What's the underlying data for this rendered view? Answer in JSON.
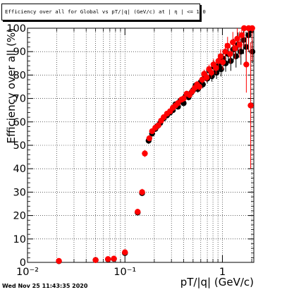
{
  "timestamp": "Wed Nov 25 11:43:35 2020",
  "chart_data": {
    "type": "scatter",
    "title": "Efficiency over all for Global vs pT/|q| (GeV/c) at | η | <= 1.0",
    "xlabel": "pT/|q| (GeV/c)",
    "ylabel": "Efficiency over all (%)",
    "xscale": "log",
    "xlim": [
      0.01,
      2.1
    ],
    "ylim": [
      0,
      100
    ],
    "grid": true,
    "xticks": [
      {
        "v": 0.01,
        "label": "10⁻²"
      },
      {
        "v": 0.1,
        "label": "10⁻¹"
      },
      {
        "v": 1,
        "label": "1"
      }
    ],
    "yticks": [
      0,
      10,
      20,
      30,
      40,
      50,
      60,
      70,
      80,
      90,
      100
    ],
    "series": [
      {
        "color": "#000000",
        "x": [
          0.021,
          0.05,
          0.067,
          0.077,
          0.1,
          0.135,
          0.15,
          0.175,
          0.19,
          0.205,
          0.215,
          0.23,
          0.25,
          0.27,
          0.29,
          0.31,
          0.33,
          0.35,
          0.37,
          0.4,
          0.42,
          0.45,
          0.48,
          0.5,
          0.53,
          0.56,
          0.6,
          0.63,
          0.66,
          0.7,
          0.73,
          0.78,
          0.82,
          0.87,
          0.92,
          0.97,
          1.02,
          1.08,
          1.15,
          1.22,
          1.3,
          1.38,
          1.45,
          1.55,
          1.65,
          1.75,
          1.85,
          1.95,
          2.03
        ],
        "y": [
          0.5,
          1.0,
          1.3,
          1.5,
          4.0,
          21.3,
          29.6,
          52.0,
          55.0,
          57.0,
          58.2,
          59.5,
          61.5,
          62.8,
          64.0,
          65.0,
          67.5,
          66.5,
          69.0,
          68.0,
          71.0,
          70.5,
          72.5,
          73.5,
          75.5,
          74.0,
          77.0,
          76.0,
          80.0,
          78.5,
          82.0,
          79.5,
          83.5,
          81.0,
          84.0,
          82.5,
          87.0,
          85.0,
          89.0,
          86.0,
          91.0,
          88.0,
          93.0,
          90.0,
          95.0,
          92.0,
          97.0,
          99.0,
          90.0
        ],
        "yerr": [
          0.3,
          0.3,
          0.4,
          0.4,
          0.6,
          1.2,
          1.3,
          1.4,
          1.2,
          1.1,
          1.1,
          1.1,
          1.1,
          1.1,
          1.1,
          1.1,
          1.1,
          1.2,
          1.2,
          1.2,
          1.3,
          1.3,
          1.4,
          1.4,
          1.5,
          1.5,
          1.6,
          1.7,
          1.8,
          2.0,
          2.1,
          2.3,
          2.5,
          2.7,
          2.9,
          3.1,
          3.3,
          3.6,
          3.9,
          4.2,
          4.5,
          4.8,
          5.2,
          5.6,
          6.0,
          6.5,
          7.0,
          3.0,
          5.0
        ]
      },
      {
        "color": "#ff0000",
        "x": [
          0.021,
          0.05,
          0.067,
          0.077,
          0.1,
          0.135,
          0.15,
          0.16,
          0.178,
          0.19,
          0.205,
          0.22,
          0.235,
          0.25,
          0.27,
          0.29,
          0.31,
          0.33,
          0.35,
          0.38,
          0.4,
          0.43,
          0.46,
          0.49,
          0.52,
          0.55,
          0.58,
          0.62,
          0.65,
          0.69,
          0.73,
          0.77,
          0.81,
          0.86,
          0.91,
          0.96,
          1.01,
          1.07,
          1.13,
          1.2,
          1.28,
          1.35,
          1.42,
          1.5,
          1.58,
          1.67,
          1.76,
          1.86,
          1.95,
          2.02
        ],
        "y": [
          0.6,
          1.0,
          1.4,
          1.6,
          4.3,
          21.6,
          30.0,
          46.5,
          53.0,
          56.0,
          57.5,
          58.5,
          60.5,
          62.0,
          63.5,
          64.5,
          66.0,
          67.0,
          68.0,
          69.5,
          70.0,
          72.0,
          71.5,
          73.0,
          74.5,
          76.0,
          75.0,
          78.0,
          80.5,
          79.0,
          82.5,
          81.0,
          84.5,
          83.0,
          86.0,
          88.0,
          85.5,
          90.0,
          92.5,
          89.0,
          94.0,
          91.5,
          95.5,
          93.0,
          97.0,
          100.0,
          84.5,
          100.0,
          67.0,
          100.0
        ],
        "yerr": [
          0.3,
          0.3,
          0.4,
          0.4,
          0.7,
          1.3,
          1.4,
          1.5,
          1.3,
          1.2,
          1.1,
          1.1,
          1.1,
          1.1,
          1.1,
          1.1,
          1.1,
          1.1,
          1.2,
          1.2,
          1.2,
          1.3,
          1.3,
          1.4,
          1.4,
          1.5,
          1.6,
          1.7,
          1.8,
          1.9,
          2.0,
          2.2,
          2.4,
          2.6,
          2.8,
          3.0,
          3.2,
          3.5,
          3.8,
          4.1,
          4.4,
          4.8,
          5.2,
          5.6,
          6.0,
          8.0,
          12.0,
          10.0,
          27.0,
          14.0
        ]
      }
    ]
  }
}
